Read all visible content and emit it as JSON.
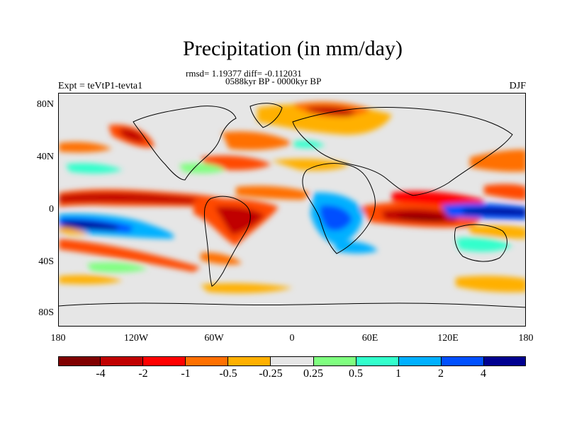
{
  "title": "Precipitation (in mm/day)",
  "subtitle": "rmsd= 1.19377 diff= -0.112031",
  "period": "0588kyr BP - 0000kyr BP",
  "left_label": "Expt = teVtP1-tevta1",
  "season": "DJF",
  "lat_labels": [
    "80N",
    "40N",
    "0",
    "40S",
    "80S"
  ],
  "lon_labels": [
    "180",
    "120W",
    "60W",
    "0",
    "60E",
    "120E",
    "180"
  ],
  "colorbar": {
    "colors": [
      "#800000",
      "#c00000",
      "#ff0000",
      "#ff7000",
      "#ffb000",
      "#e6e6e6",
      "#80ff80",
      "#33ffcc",
      "#00b0ff",
      "#0050ff",
      "#000090"
    ],
    "labels": [
      "-4",
      "-2",
      "-1",
      "-0.5",
      "-0.25",
      "0.25",
      "0.5",
      "1",
      "2",
      "4"
    ]
  }
}
